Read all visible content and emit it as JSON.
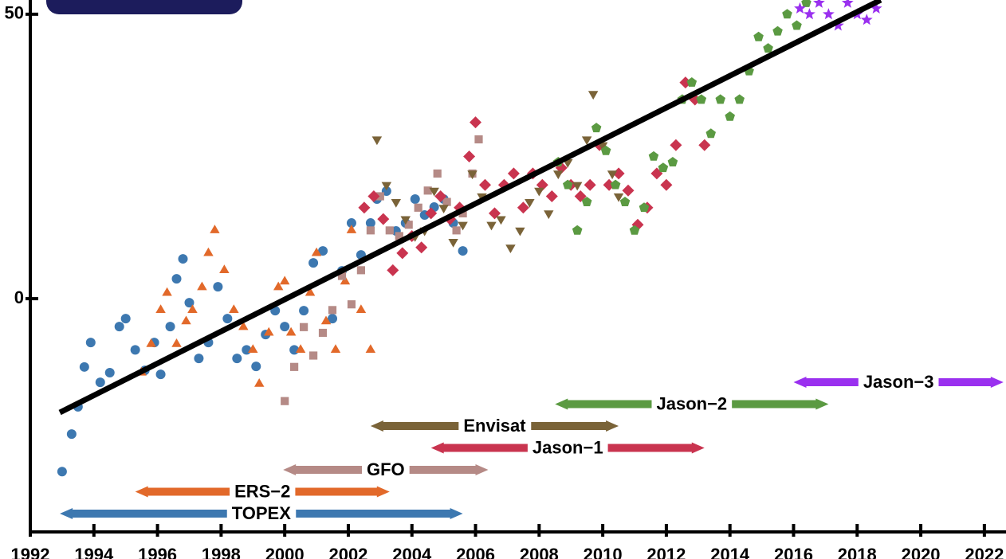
{
  "chart_data": {
    "type": "scatter",
    "xlim": [
      1992,
      2022.68
    ],
    "ylim": [
      -41,
      52.5
    ],
    "xticks": [
      1992,
      1994,
      1996,
      1998,
      2000,
      2002,
      2004,
      2006,
      2008,
      2010,
      2012,
      2014,
      2016,
      2018,
      2020,
      2022
    ],
    "yticks": [
      0,
      50
    ],
    "series": [
      {
        "name": "TOPEX",
        "color": "#3d78b0",
        "marker": "circle",
        "span": [
          1992.93,
          2005.6
        ],
        "x": [
          1993.0,
          1993.3,
          1993.5,
          1993.7,
          1993.9,
          1994.2,
          1994.5,
          1994.8,
          1995.0,
          1995.3,
          1995.6,
          1995.9,
          1996.1,
          1996.4,
          1996.6,
          1996.8,
          1997.0,
          1997.3,
          1997.6,
          1997.9,
          1998.2,
          1998.5,
          1998.8,
          1999.1,
          1999.4,
          1999.7,
          2000.0,
          2000.3,
          2000.6,
          2000.9,
          2001.2,
          2001.5,
          2001.8,
          2002.1,
          2002.4,
          2002.7,
          2002.9,
          2003.2,
          2003.5,
          2003.8,
          2004.1,
          2004.4,
          2004.7,
          2005.0,
          2005.3,
          2005.6
        ],
        "values": [
          -30.4,
          -23.8,
          -19,
          -12,
          -7.7,
          -14.7,
          -13,
          -4.9,
          -3.5,
          -9,
          -12.6,
          -7.7,
          -13.3,
          -4.9,
          3.5,
          7,
          -0.7,
          -10.5,
          -7.7,
          2.1,
          -3.5,
          -10.5,
          -9,
          -11.9,
          -6.3,
          -2.1,
          -4.9,
          -9,
          -2.1,
          6.3,
          8.4,
          -3.5,
          4.9,
          13.3,
          7.7,
          13.3,
          17.5,
          18.9,
          11.9,
          13.3,
          17.5,
          14.7,
          16.1,
          17.5,
          13.3,
          8.4
        ]
      },
      {
        "name": "ERS−2",
        "color": "#e2692a",
        "marker": "triangle",
        "span": [
          1995.3,
          2003.3
        ],
        "x": [
          1995.5,
          1995.8,
          1996.1,
          1996.3,
          1996.6,
          1996.9,
          1997.1,
          1997.4,
          1997.6,
          1997.8,
          1998.1,
          1998.4,
          1998.7,
          1999.0,
          1999.2,
          1999.5,
          1999.8,
          2000.0,
          2000.2,
          2000.5,
          2000.8,
          2001.0,
          2001.3,
          2001.6,
          2001.9,
          2002.1,
          2002.4,
          2002.7
        ],
        "values": [
          -13,
          -8,
          -2,
          1,
          -8,
          -4,
          -2,
          2,
          8,
          12,
          5,
          -2,
          -5,
          -9,
          -15,
          -6,
          2,
          3,
          -6,
          -9,
          1,
          8,
          -4,
          -9,
          3,
          12,
          -2,
          -9
        ]
      },
      {
        "name": "GFO",
        "color": "#b58a86",
        "marker": "square",
        "span": [
          1999.95,
          2006.4
        ],
        "x": [
          2000.0,
          2000.3,
          2000.6,
          2000.9,
          2001.2,
          2001.5,
          2001.8,
          2002.1,
          2002.4,
          2002.7,
          2003.0,
          2003.3,
          2003.6,
          2003.9,
          2004.2,
          2004.5,
          2004.8,
          2005.1,
          2005.4,
          2005.6,
          2005.9,
          2006.1
        ],
        "values": [
          -18,
          -12,
          -5,
          -10,
          -6,
          -2,
          4,
          -1,
          5,
          12,
          18,
          12,
          11,
          13,
          16,
          19,
          22,
          17,
          12,
          15,
          22,
          28
        ]
      },
      {
        "name": "Jason−1",
        "color": "#c9344f",
        "marker": "diamond",
        "span": [
          2004.6,
          2013.2
        ],
        "x": [
          2002.5,
          2002.8,
          2003.1,
          2003.4,
          2003.7,
          2004.0,
          2004.3,
          2004.6,
          2004.9,
          2005.2,
          2005.5,
          2005.8,
          2006.0,
          2006.3,
          2006.6,
          2006.9,
          2007.2,
          2007.5,
          2007.8,
          2008.1,
          2008.4,
          2008.7,
          2009.0,
          2009.3,
          2009.6,
          2009.9,
          2010.2,
          2010.5,
          2010.8,
          2011.1,
          2011.4,
          2011.7,
          2012.0,
          2012.3,
          2012.6,
          2012.9,
          2013.2
        ],
        "values": [
          16,
          18,
          14,
          5,
          8,
          11,
          9,
          15,
          18,
          14,
          16,
          25,
          31,
          20,
          15,
          20,
          22,
          16,
          22,
          20,
          18,
          23,
          20,
          18,
          20,
          27,
          20,
          22,
          19,
          13,
          16,
          22,
          20,
          27,
          38,
          35,
          27
        ]
      },
      {
        "name": "Envisat",
        "color": "#7a6338",
        "marker": "triangle-down",
        "span": [
          2002.7,
          2010.5
        ],
        "x": [
          2002.9,
          2003.2,
          2003.5,
          2003.8,
          2004.1,
          2004.4,
          2004.7,
          2005.0,
          2005.3,
          2005.6,
          2005.9,
          2006.2,
          2006.5,
          2006.8,
          2007.1,
          2007.4,
          2007.7,
          2008.0,
          2008.3,
          2008.6,
          2008.9,
          2009.2,
          2009.5,
          2009.7,
          2010.0,
          2010.3,
          2010.5
        ],
        "values": [
          28,
          20,
          17,
          14,
          11,
          12,
          19,
          16,
          10,
          13,
          22,
          18,
          13,
          14,
          9,
          12,
          17,
          19,
          15,
          22,
          24,
          20,
          28,
          36,
          27,
          22,
          18
        ]
      },
      {
        "name": "Jason−2",
        "color": "#5b9a42",
        "marker": "pentagon",
        "span": [
          2008.5,
          2017.1
        ],
        "x": [
          2008.6,
          2008.9,
          2009.2,
          2009.5,
          2009.8,
          2010.1,
          2010.4,
          2010.7,
          2011.0,
          2011.3,
          2011.6,
          2011.9,
          2012.2,
          2012.5,
          2012.8,
          2013.1,
          2013.4,
          2013.7,
          2014.0,
          2014.3,
          2014.6,
          2014.9,
          2015.2,
          2015.5,
          2015.8,
          2016.1,
          2016.4
        ],
        "values": [
          24,
          20,
          12,
          17,
          30,
          26,
          20,
          17,
          12,
          16,
          25,
          23,
          24,
          35,
          38,
          35,
          29,
          35,
          32,
          35,
          40,
          46,
          44,
          47,
          50,
          48,
          52
        ]
      },
      {
        "name": "Jason−3",
        "color": "#9a30ef",
        "marker": "star",
        "span": [
          2016.0,
          2022.6
        ],
        "x": [
          2016.2,
          2016.5,
          2016.8,
          2017.1,
          2017.4,
          2017.7,
          2018.0,
          2018.3,
          2018.6
        ],
        "values": [
          51,
          50,
          52,
          50,
          48,
          52,
          50,
          49,
          51
        ]
      }
    ],
    "trend": {
      "color": "#000000",
      "x": [
        1992.93,
        2018.74
      ],
      "values": [
        -20,
        52.5
      ]
    }
  }
}
